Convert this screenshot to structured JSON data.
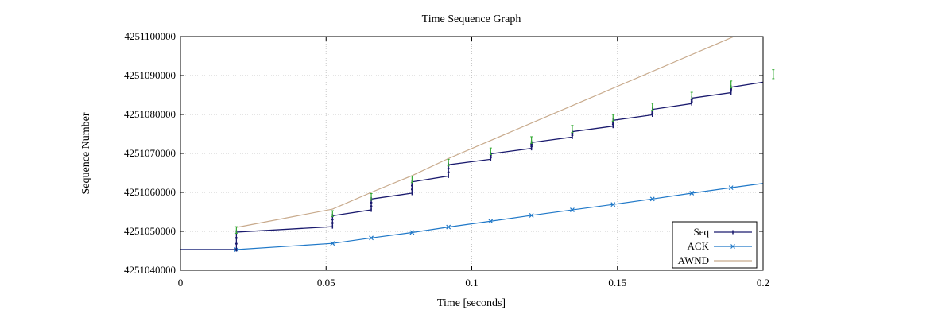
{
  "chart_data": {
    "type": "line",
    "title": "Time Sequence Graph",
    "xlabel": "Time [seconds]",
    "ylabel": "Sequence Number",
    "xlim": [
      0,
      0.2
    ],
    "ylim": [
      4251040000,
      4251100000
    ],
    "x_ticks": [
      0,
      0.05,
      0.1,
      0.15,
      0.2
    ],
    "x_tick_labels": [
      "0",
      "0.05",
      "0.1",
      "0.15",
      "0.2"
    ],
    "y_ticks": [
      4251040000,
      4251050000,
      4251060000,
      4251070000,
      4251080000,
      4251090000,
      4251100000
    ],
    "y_tick_labels": [
      "4251040000",
      "4251050000",
      "4251060000",
      "4251070000",
      "4251080000",
      "4251090000",
      "4251100000"
    ],
    "grid": true,
    "legend_position": "bottom-right",
    "series": [
      {
        "name": "Seq",
        "color": "#1a1a6e",
        "marker": "vertical-tick",
        "x": [
          0,
          0.0192,
          0.0192,
          0.0522,
          0.0522,
          0.0655,
          0.0655,
          0.0795,
          0.0795,
          0.092,
          0.092,
          0.1065,
          0.1065,
          0.1205,
          0.1205,
          0.1345,
          0.1345,
          0.1485,
          0.1485,
          0.162,
          0.162,
          0.1755,
          0.1755,
          0.189,
          0.189,
          0.2
        ],
        "y": [
          4251045300,
          4251045300,
          4251049800,
          4251051200,
          4251054000,
          4251055500,
          4251058300,
          4251059800,
          4251062700,
          4251064200,
          4251067100,
          4251068500,
          4251069900,
          4251071300,
          4251072800,
          4251074200,
          4251075600,
          4251077000,
          4251078500,
          4251079900,
          4251081300,
          4251082800,
          4251084200,
          4251085600,
          4251087000,
          4251088300
        ]
      },
      {
        "name": "ACK",
        "color": "#1f78c8",
        "marker": "x",
        "x": [
          0,
          0.0192,
          0.0522,
          0.0655,
          0.0795,
          0.092,
          0.1065,
          0.1205,
          0.1345,
          0.1485,
          0.162,
          0.1755,
          0.189,
          0.2
        ],
        "y": [
          4251045300,
          4251045300,
          4251046900,
          4251048300,
          4251049700,
          4251051100,
          4251052600,
          4251054100,
          4251055500,
          4251056900,
          4251058300,
          4251059800,
          4251061200,
          4251062300
        ]
      },
      {
        "name": "AWND",
        "color": "#c8aa8c",
        "marker": "none",
        "x": [
          0.0192,
          0.0522,
          0.0655,
          0.0795,
          0.092,
          0.19
        ],
        "y": [
          4251051000,
          4251055700,
          4251060000,
          4251064300,
          4251068700,
          4251100000
        ]
      }
    ],
    "sack_marks": {
      "color": "#33aa33",
      "x": [
        0.0192,
        0.0522,
        0.0655,
        0.0795,
        0.092,
        0.1065,
        0.1205,
        0.1345,
        0.1485,
        0.162,
        0.1755,
        0.189,
        0.2035
      ],
      "y_low": [
        4251049500,
        4251053800,
        4251058000,
        4251062500,
        4251066800,
        4251069700,
        4251072600,
        4251075400,
        4251078300,
        4251081100,
        4251084000,
        4251086800,
        4251089200
      ],
      "y_high": [
        4251051200,
        4251055300,
        4251059700,
        4251064200,
        4251068500,
        4251071400,
        4251074300,
        4251077200,
        4251080000,
        4251082900,
        4251085700,
        4251088600,
        4251091500
      ]
    }
  }
}
